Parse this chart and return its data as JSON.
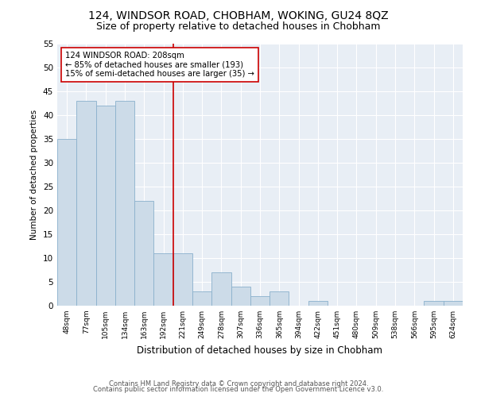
{
  "title": "124, WINDSOR ROAD, CHOBHAM, WOKING, GU24 8QZ",
  "subtitle": "Size of property relative to detached houses in Chobham",
  "xlabel": "Distribution of detached houses by size in Chobham",
  "ylabel": "Number of detached properties",
  "categories": [
    "48sqm",
    "77sqm",
    "105sqm",
    "134sqm",
    "163sqm",
    "192sqm",
    "221sqm",
    "249sqm",
    "278sqm",
    "307sqm",
    "336sqm",
    "365sqm",
    "394sqm",
    "422sqm",
    "451sqm",
    "480sqm",
    "509sqm",
    "538sqm",
    "566sqm",
    "595sqm",
    "624sqm"
  ],
  "values": [
    35,
    43,
    42,
    43,
    22,
    11,
    11,
    3,
    7,
    4,
    2,
    3,
    0,
    1,
    0,
    0,
    0,
    0,
    0,
    1,
    1
  ],
  "bar_color": "#ccdbe8",
  "bar_edge_color": "#8ab0cc",
  "vline_color": "#cc0000",
  "annotation_text": "124 WINDSOR ROAD: 208sqm\n← 85% of detached houses are smaller (193)\n15% of semi-detached houses are larger (35) →",
  "annotation_box_color": "#ffffff",
  "annotation_box_edge_color": "#cc0000",
  "ylim": [
    0,
    55
  ],
  "yticks": [
    0,
    5,
    10,
    15,
    20,
    25,
    30,
    35,
    40,
    45,
    50,
    55
  ],
  "bg_color": "#e8eef5",
  "footer1": "Contains HM Land Registry data © Crown copyright and database right 2024.",
  "footer2": "Contains public sector information licensed under the Open Government Licence v3.0.",
  "title_fontsize": 10,
  "subtitle_fontsize": 9
}
